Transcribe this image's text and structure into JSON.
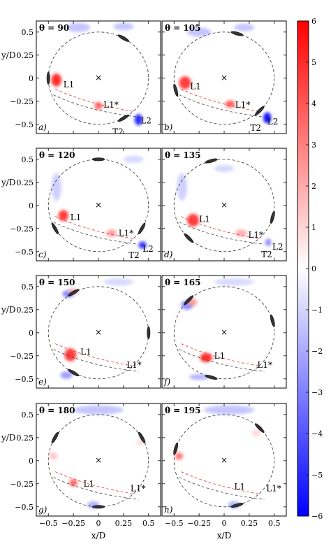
{
  "chart_data": {
    "type": "heatmap",
    "xlabel": "x/D",
    "ylabel": "y/D",
    "xlim": [
      -0.62,
      0.62
    ],
    "ylim": [
      -0.6,
      0.62
    ],
    "xticks": [
      -0.5,
      -0.25,
      0,
      0.25,
      0.5
    ],
    "xticklabels": [
      "−0.5",
      "−0.25",
      "0",
      "0.25",
      "0.5"
    ],
    "yticks": [
      0.5,
      0.25,
      0,
      -0.25,
      -0.5
    ],
    "yticklabels": [
      "0.5",
      "0.25",
      "0",
      "−0.25",
      "−0.5"
    ],
    "colorbar": {
      "min": -6,
      "max": 6,
      "ticks": [
        "6",
        "5",
        "4",
        "3",
        "2",
        "1",
        "0",
        "−1",
        "−2",
        "−3",
        "−4",
        "−5",
        "−6"
      ],
      "colors": [
        "#0000ff",
        "#ffffff",
        "#ff0000"
      ]
    },
    "circle_radius": 0.5,
    "panels": [
      {
        "id": "a",
        "label": "a)",
        "theta_text": "θ = 90",
        "theta": 90,
        "blobs": [
          {
            "x": -0.42,
            "y": -0.02,
            "rx": 0.05,
            "ry": 0.07,
            "v": 5.5
          },
          {
            "x": -0.0,
            "y": -0.3,
            "rx": 0.04,
            "ry": 0.04,
            "v": 4
          },
          {
            "x": 0.4,
            "y": -0.45,
            "rx": 0.04,
            "ry": 0.06,
            "v": -5.5
          },
          {
            "x": -0.2,
            "y": 0.55,
            "rx": 0.12,
            "ry": 0.05,
            "v": -1.5
          },
          {
            "x": 0.25,
            "y": 0.56,
            "rx": 0.1,
            "ry": 0.04,
            "v": -1.5
          }
        ],
        "annotations": [
          {
            "text": "L1",
            "x": -0.35,
            "y": -0.07
          },
          {
            "text": "L1*",
            "x": 0.05,
            "y": -0.29
          },
          {
            "text": "L2",
            "x": 0.42,
            "y": -0.46
          },
          {
            "text": "T2",
            "x": 0.14,
            "y": -0.58
          }
        ]
      },
      {
        "id": "b",
        "label": "b)",
        "theta_text": "θ = 105",
        "theta": 105,
        "blobs": [
          {
            "x": -0.39,
            "y": -0.05,
            "rx": 0.06,
            "ry": 0.07,
            "v": 5
          },
          {
            "x": 0.06,
            "y": -0.28,
            "rx": 0.05,
            "ry": 0.04,
            "v": 4
          },
          {
            "x": 0.43,
            "y": -0.43,
            "rx": 0.04,
            "ry": 0.06,
            "v": -6
          },
          {
            "x": -0.25,
            "y": 0.5,
            "rx": 0.12,
            "ry": 0.05,
            "v": -1.5
          },
          {
            "x": 0.2,
            "y": 0.55,
            "rx": 0.1,
            "ry": 0.04,
            "v": -1.5
          }
        ],
        "annotations": [
          {
            "text": "L1",
            "x": -0.34,
            "y": -0.09
          },
          {
            "text": "L1*",
            "x": 0.11,
            "y": -0.29
          },
          {
            "text": "L2",
            "x": 0.43,
            "y": -0.47
          },
          {
            "text": "T2",
            "x": 0.26,
            "y": -0.54
          }
        ]
      },
      {
        "id": "c",
        "label": "c)",
        "theta_text": "θ = 120",
        "theta": 120,
        "blobs": [
          {
            "x": -0.35,
            "y": -0.11,
            "rx": 0.05,
            "ry": 0.06,
            "v": 5
          },
          {
            "x": 0.13,
            "y": -0.3,
            "rx": 0.05,
            "ry": 0.04,
            "v": 2.5
          },
          {
            "x": 0.44,
            "y": -0.43,
            "rx": 0.04,
            "ry": 0.04,
            "v": -5
          },
          {
            "x": -0.42,
            "y": 0.2,
            "rx": 0.05,
            "ry": 0.15,
            "v": -1.2
          },
          {
            "x": 0.35,
            "y": 0.5,
            "rx": 0.1,
            "ry": 0.04,
            "v": -1
          }
        ],
        "annotations": [
          {
            "text": "L1",
            "x": -0.28,
            "y": -0.13
          },
          {
            "text": "L1*",
            "x": 0.2,
            "y": -0.3
          },
          {
            "text": "L2",
            "x": 0.44,
            "y": -0.47
          },
          {
            "text": "T2",
            "x": 0.3,
            "y": -0.54
          }
        ]
      },
      {
        "id": "d",
        "label": "d)",
        "theta_text": "θ = 135",
        "theta": 135,
        "blobs": [
          {
            "x": -0.31,
            "y": -0.16,
            "rx": 0.06,
            "ry": 0.07,
            "v": 5
          },
          {
            "x": 0.17,
            "y": -0.3,
            "rx": 0.06,
            "ry": 0.04,
            "v": 2
          },
          {
            "x": 0.44,
            "y": -0.4,
            "rx": 0.03,
            "ry": 0.04,
            "v": -3
          },
          {
            "x": -0.42,
            "y": 0.2,
            "rx": 0.05,
            "ry": 0.15,
            "v": -1.2
          },
          {
            "x": 0.0,
            "y": 0.4,
            "rx": 0.1,
            "ry": 0.04,
            "v": -1
          }
        ],
        "annotations": [
          {
            "text": "L1",
            "x": -0.25,
            "y": -0.15
          },
          {
            "text": "L1*",
            "x": 0.24,
            "y": -0.32
          },
          {
            "text": "L2",
            "x": 0.48,
            "y": -0.45
          },
          {
            "text": "T2",
            "x": 0.37,
            "y": -0.53
          }
        ]
      },
      {
        "id": "e",
        "label": "e)",
        "theta_text": "θ = 150",
        "theta": 150,
        "blobs": [
          {
            "x": -0.28,
            "y": -0.24,
            "rx": 0.06,
            "ry": 0.07,
            "v": 5
          },
          {
            "x": -0.3,
            "y": 0.42,
            "rx": 0.06,
            "ry": 0.04,
            "v": -3
          },
          {
            "x": -0.25,
            "y": 0.45,
            "rx": 0.05,
            "ry": 0.03,
            "v": 2
          },
          {
            "x": -0.32,
            "y": -0.46,
            "rx": 0.06,
            "ry": 0.04,
            "v": -2.5
          },
          {
            "x": 0.2,
            "y": 0.55,
            "rx": 0.15,
            "ry": 0.04,
            "v": -1
          }
        ],
        "annotations": [
          {
            "text": "L1",
            "x": -0.18,
            "y": -0.21
          },
          {
            "text": "L1*",
            "x": 0.28,
            "y": -0.35
          }
        ]
      },
      {
        "id": "f",
        "label": "f)",
        "theta_text": "θ = 165",
        "theta": 165,
        "blobs": [
          {
            "x": -0.18,
            "y": -0.27,
            "rx": 0.06,
            "ry": 0.05,
            "v": 5.5
          },
          {
            "x": -0.37,
            "y": 0.3,
            "rx": 0.06,
            "ry": 0.05,
            "v": -3
          },
          {
            "x": -0.32,
            "y": 0.33,
            "rx": 0.05,
            "ry": 0.04,
            "v": 2.5
          },
          {
            "x": -0.25,
            "y": -0.48,
            "rx": 0.1,
            "ry": 0.03,
            "v": -2
          },
          {
            "x": 0.1,
            "y": 0.55,
            "rx": 0.2,
            "ry": 0.04,
            "v": -1
          }
        ],
        "annotations": [
          {
            "text": "L1",
            "x": -0.1,
            "y": -0.25
          },
          {
            "text": "L1*",
            "x": 0.33,
            "y": -0.35
          }
        ]
      },
      {
        "id": "g",
        "label": "g)",
        "theta_text": "θ = 180",
        "theta": 180,
        "blobs": [
          {
            "x": -0.25,
            "y": -0.24,
            "rx": 0.04,
            "ry": 0.04,
            "v": 4
          },
          {
            "x": -0.05,
            "y": -0.48,
            "rx": 0.06,
            "ry": 0.04,
            "v": -2
          },
          {
            "x": 0.0,
            "y": 0.55,
            "rx": 0.25,
            "ry": 0.05,
            "v": -1.5
          },
          {
            "x": -0.45,
            "y": 0.05,
            "rx": 0.04,
            "ry": 0.04,
            "v": 1.5
          },
          {
            "x": 0.42,
            "y": 0.2,
            "rx": 0.04,
            "ry": 0.03,
            "v": 1
          }
        ],
        "annotations": [
          {
            "text": "L1",
            "x": -0.15,
            "y": -0.25
          },
          {
            "text": "L1*",
            "x": 0.32,
            "y": -0.3
          }
        ]
      },
      {
        "id": "h",
        "label": "h)",
        "theta_text": "θ = 195",
        "theta": 195,
        "blobs": [
          {
            "x": -0.45,
            "y": 0.05,
            "rx": 0.04,
            "ry": 0.04,
            "v": 3.5
          },
          {
            "x": 0.1,
            "y": -0.48,
            "rx": 0.06,
            "ry": 0.04,
            "v": -2
          },
          {
            "x": 0.05,
            "y": 0.55,
            "rx": 0.25,
            "ry": 0.05,
            "v": -1.5
          },
          {
            "x": 0.32,
            "y": 0.3,
            "rx": 0.04,
            "ry": 0.04,
            "v": 1
          }
        ],
        "annotations": [
          {
            "text": "L1",
            "x": 0.1,
            "y": -0.28
          },
          {
            "text": "L1*",
            "x": 0.42,
            "y": -0.3
          }
        ]
      }
    ]
  }
}
